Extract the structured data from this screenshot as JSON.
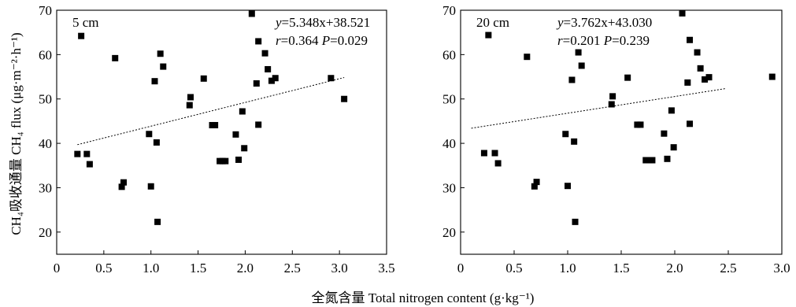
{
  "figure": {
    "ylabel_main": "CH₄吸收通量 CH₄ flux (μg·m⁻²·h⁻¹)",
    "xlabel": "全氮含量 Total nitrogen content (g·kg⁻¹)"
  },
  "chart_data": [
    {
      "type": "scatter",
      "title": "5 cm",
      "equation": "y=5.348x+38.521",
      "stats": "r=0.364 P=0.029",
      "xlim": [
        0,
        3.5
      ],
      "ylim": [
        15,
        70
      ],
      "xticks": [
        0,
        0.5,
        1.0,
        1.5,
        2.0,
        2.5,
        3.0,
        3.5
      ],
      "xtick_labels": [
        "0",
        "0.5",
        "1.0",
        "1.5",
        "2.0",
        "2.5",
        "3.0",
        "3.5"
      ],
      "yticks": [
        20,
        30,
        40,
        50,
        60,
        70
      ],
      "trendline": {
        "slope": 5.348,
        "intercept": 38.521,
        "x_range": [
          0.22,
          3.05
        ]
      },
      "points": [
        [
          0.22,
          37.6
        ],
        [
          0.26,
          64.2
        ],
        [
          0.32,
          37.6
        ],
        [
          0.35,
          35.3
        ],
        [
          0.62,
          59.2
        ],
        [
          0.69,
          30.2
        ],
        [
          0.71,
          31.2
        ],
        [
          0.98,
          42.1
        ],
        [
          1.0,
          30.3
        ],
        [
          1.04,
          54.0
        ],
        [
          1.06,
          40.2
        ],
        [
          1.07,
          22.3
        ],
        [
          1.1,
          60.2
        ],
        [
          1.13,
          57.3
        ],
        [
          1.41,
          48.6
        ],
        [
          1.42,
          50.4
        ],
        [
          1.56,
          54.6
        ],
        [
          1.65,
          44.1
        ],
        [
          1.68,
          44.1
        ],
        [
          1.73,
          36.0
        ],
        [
          1.76,
          36.0
        ],
        [
          1.79,
          36.0
        ],
        [
          1.9,
          42.0
        ],
        [
          1.93,
          36.3
        ],
        [
          1.97,
          47.2
        ],
        [
          1.99,
          38.9
        ],
        [
          2.07,
          69.2
        ],
        [
          2.12,
          53.5
        ],
        [
          2.14,
          44.2
        ],
        [
          2.14,
          63.0
        ],
        [
          2.21,
          60.3
        ],
        [
          2.24,
          56.7
        ],
        [
          2.28,
          54.1
        ],
        [
          2.32,
          54.7
        ],
        [
          2.91,
          54.7
        ],
        [
          3.05,
          50.0
        ]
      ]
    },
    {
      "type": "scatter",
      "title": "20 cm",
      "equation": "y=3.762x+43.030",
      "stats": "r=0.201 P=0.239",
      "xlim": [
        0,
        3.0
      ],
      "ylim": [
        15,
        70
      ],
      "xticks": [
        0,
        0.5,
        1.0,
        1.5,
        2.0,
        2.5,
        3.0
      ],
      "xtick_labels": [
        "0",
        "0.5",
        "1.0",
        "1.5",
        "2.0",
        "2.5",
        "3.0"
      ],
      "yticks": [
        20,
        30,
        40,
        50,
        60,
        70
      ],
      "trendline": {
        "slope": 3.762,
        "intercept": 43.03,
        "x_range": [
          0.1,
          2.47
        ]
      },
      "points": [
        [
          0.22,
          37.8
        ],
        [
          0.26,
          64.4
        ],
        [
          0.32,
          37.8
        ],
        [
          0.35,
          35.5
        ],
        [
          0.62,
          59.5
        ],
        [
          0.69,
          30.3
        ],
        [
          0.71,
          31.3
        ],
        [
          0.98,
          42.1
        ],
        [
          1.0,
          30.4
        ],
        [
          1.04,
          54.3
        ],
        [
          1.06,
          40.4
        ],
        [
          1.07,
          22.3
        ],
        [
          1.1,
          60.5
        ],
        [
          1.13,
          57.5
        ],
        [
          1.41,
          48.8
        ],
        [
          1.42,
          50.6
        ],
        [
          1.56,
          54.8
        ],
        [
          1.65,
          44.2
        ],
        [
          1.68,
          44.2
        ],
        [
          1.73,
          36.2
        ],
        [
          1.76,
          36.2
        ],
        [
          1.79,
          36.2
        ],
        [
          1.9,
          42.2
        ],
        [
          1.93,
          36.5
        ],
        [
          1.97,
          47.4
        ],
        [
          1.99,
          39.1
        ],
        [
          2.07,
          69.3
        ],
        [
          2.12,
          53.7
        ],
        [
          2.14,
          44.4
        ],
        [
          2.14,
          63.3
        ],
        [
          2.21,
          60.5
        ],
        [
          2.24,
          56.9
        ],
        [
          2.28,
          54.4
        ],
        [
          2.32,
          54.9
        ],
        [
          2.91,
          55.0
        ]
      ]
    }
  ]
}
